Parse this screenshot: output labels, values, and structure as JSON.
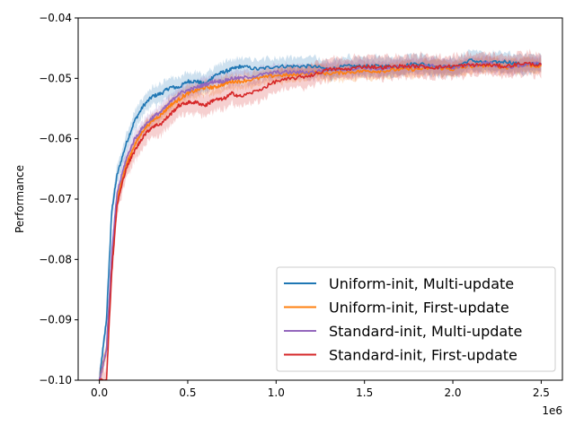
{
  "chart_data": {
    "type": "line",
    "title": "",
    "xlabel": "",
    "ylabel": "Performance",
    "x_offset_label": "1e6",
    "xlim": [
      -0.12,
      2.62
    ],
    "ylim": [
      -0.1,
      -0.04
    ],
    "x_ticks": [
      0.0,
      0.5,
      1.0,
      1.5,
      2.0,
      2.5
    ],
    "x_tick_labels": [
      "0.0",
      "0.5",
      "1.0",
      "1.5",
      "2.0",
      "2.5"
    ],
    "y_ticks": [
      -0.1,
      -0.09,
      -0.08,
      -0.07,
      -0.06,
      -0.05,
      -0.04
    ],
    "y_tick_labels": [
      "−0.10",
      "−0.09",
      "−0.08",
      "−0.07",
      "−0.06",
      "−0.05",
      "−0.04"
    ],
    "grid": false,
    "legend_position": "lower-right",
    "series": [
      {
        "name": "Uniform-init, Multi-update",
        "color": "#1f77b4",
        "x": [
          0.0,
          0.04,
          0.07,
          0.1,
          0.15,
          0.2,
          0.25,
          0.3,
          0.35,
          0.4,
          0.45,
          0.5,
          0.55,
          0.6,
          0.65,
          0.7,
          0.75,
          0.8,
          0.9,
          1.0,
          1.1,
          1.2,
          1.3,
          1.4,
          1.5,
          1.6,
          1.7,
          1.8,
          1.9,
          2.0,
          2.1,
          2.2,
          2.3,
          2.4,
          2.5
        ],
        "y": [
          -0.1,
          -0.09,
          -0.072,
          -0.066,
          -0.061,
          -0.057,
          -0.0545,
          -0.053,
          -0.0525,
          -0.0515,
          -0.0515,
          -0.0505,
          -0.0505,
          -0.051,
          -0.0495,
          -0.049,
          -0.0485,
          -0.048,
          -0.0485,
          -0.048,
          -0.048,
          -0.048,
          -0.0485,
          -0.048,
          -0.048,
          -0.048,
          -0.048,
          -0.0475,
          -0.048,
          -0.0482,
          -0.047,
          -0.0475,
          -0.0472,
          -0.0478,
          -0.0475
        ],
        "band": 0.0015
      },
      {
        "name": "Uniform-init, First-update",
        "color": "#ff7f0e",
        "x": [
          0.0,
          0.04,
          0.07,
          0.1,
          0.15,
          0.2,
          0.25,
          0.3,
          0.35,
          0.4,
          0.45,
          0.5,
          0.55,
          0.6,
          0.65,
          0.7,
          0.75,
          0.8,
          0.9,
          1.0,
          1.1,
          1.2,
          1.3,
          1.4,
          1.5,
          1.6,
          1.7,
          1.8,
          1.9,
          2.0,
          2.1,
          2.2,
          2.3,
          2.4,
          2.5
        ],
        "y": [
          -0.1,
          -0.095,
          -0.08,
          -0.07,
          -0.0645,
          -0.061,
          -0.0585,
          -0.057,
          -0.056,
          -0.0545,
          -0.0535,
          -0.0525,
          -0.052,
          -0.0515,
          -0.0515,
          -0.051,
          -0.0505,
          -0.0505,
          -0.05,
          -0.0495,
          -0.0495,
          -0.049,
          -0.0492,
          -0.049,
          -0.0488,
          -0.0488,
          -0.0485,
          -0.0485,
          -0.0482,
          -0.0485,
          -0.048,
          -0.0478,
          -0.0482,
          -0.0478,
          -0.048
        ],
        "band": 0.0012
      },
      {
        "name": "Standard-init, Multi-update",
        "color": "#9467bd",
        "x": [
          0.0,
          0.04,
          0.07,
          0.1,
          0.15,
          0.2,
          0.25,
          0.3,
          0.35,
          0.4,
          0.45,
          0.5,
          0.55,
          0.6,
          0.65,
          0.7,
          0.75,
          0.8,
          0.9,
          1.0,
          1.1,
          1.2,
          1.3,
          1.4,
          1.5,
          1.6,
          1.7,
          1.8,
          1.9,
          2.0,
          2.1,
          2.2,
          2.3,
          2.4,
          2.5
        ],
        "y": [
          -0.1,
          -0.095,
          -0.079,
          -0.069,
          -0.0635,
          -0.06,
          -0.058,
          -0.0565,
          -0.0555,
          -0.054,
          -0.0525,
          -0.052,
          -0.0515,
          -0.051,
          -0.0505,
          -0.0505,
          -0.05,
          -0.05,
          -0.0495,
          -0.049,
          -0.049,
          -0.049,
          -0.0485,
          -0.0485,
          -0.0482,
          -0.0485,
          -0.048,
          -0.048,
          -0.048,
          -0.0482,
          -0.0478,
          -0.0475,
          -0.0482,
          -0.0478,
          -0.0475
        ],
        "band": 0.0012
      },
      {
        "name": "Standard-init, First-update",
        "color": "#d62728",
        "x": [
          0.0,
          0.04,
          0.07,
          0.1,
          0.15,
          0.2,
          0.25,
          0.3,
          0.35,
          0.4,
          0.45,
          0.5,
          0.55,
          0.6,
          0.65,
          0.7,
          0.75,
          0.8,
          0.9,
          1.0,
          1.1,
          1.2,
          1.3,
          1.4,
          1.5,
          1.6,
          1.7,
          1.8,
          1.9,
          2.0,
          2.1,
          2.2,
          2.3,
          2.4,
          2.5
        ],
        "y": [
          -0.1,
          -0.1,
          -0.082,
          -0.071,
          -0.065,
          -0.062,
          -0.0595,
          -0.058,
          -0.0575,
          -0.056,
          -0.0545,
          -0.054,
          -0.054,
          -0.0545,
          -0.0535,
          -0.0535,
          -0.0525,
          -0.053,
          -0.052,
          -0.0505,
          -0.05,
          -0.0495,
          -0.0485,
          -0.0485,
          -0.048,
          -0.0482,
          -0.048,
          -0.048,
          -0.0482,
          -0.048,
          -0.0478,
          -0.0478,
          -0.048,
          -0.0475,
          -0.0478
        ],
        "band": 0.0018
      }
    ]
  }
}
